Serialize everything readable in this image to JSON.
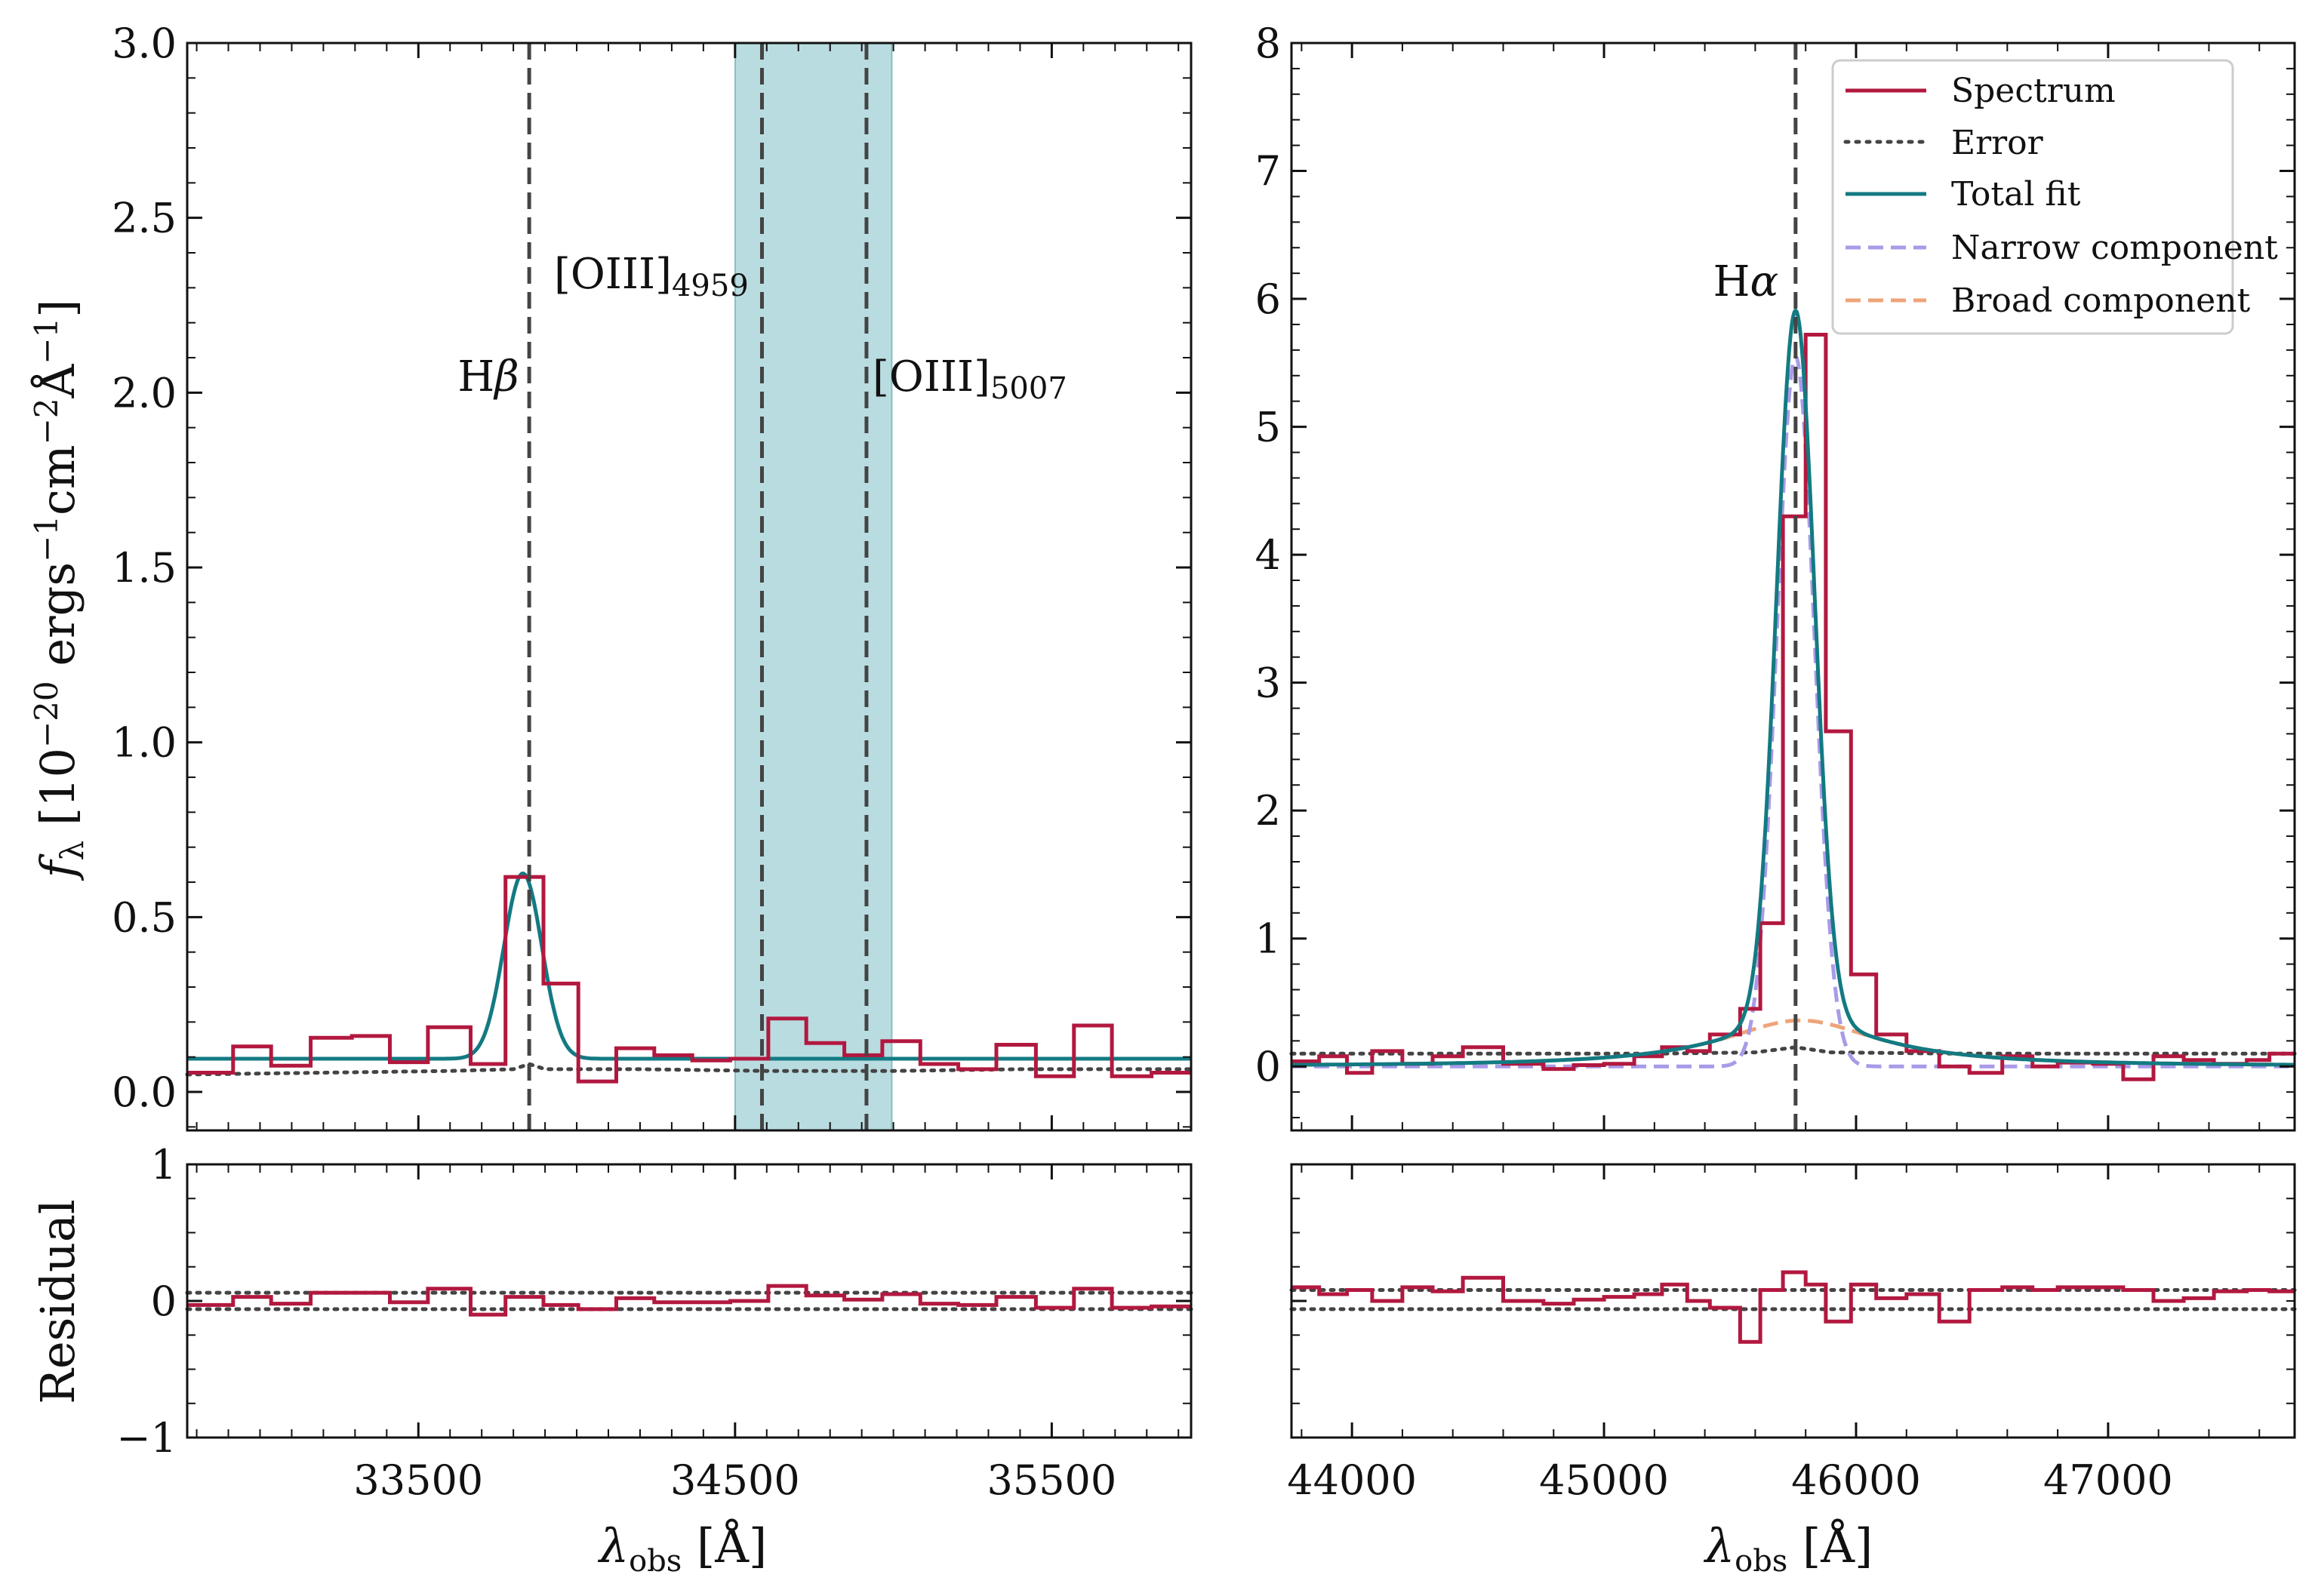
{
  "figure": {
    "colors": {
      "spectrum": "#b2183f",
      "error": "#444444",
      "total_fit": "#137a82",
      "narrow": "#a99be8",
      "broad": "#eea47a",
      "shade": "#7fbfc7",
      "vline": "#444444",
      "frame": "#111111"
    }
  },
  "chart_data": [
    {
      "id": "left-main",
      "type": "line",
      "xlim": [
        32770,
        35940
      ],
      "ylim": [
        -0.11,
        3.0
      ],
      "ylabel": "f_λ [10^−20 ergs^−1 cm^−2 Å^−1]",
      "yticks": [
        0.0,
        0.5,
        1.0,
        1.5,
        2.0,
        2.5,
        3.0
      ],
      "ytick_labels": [
        "0.0",
        "0.5",
        "1.0",
        "1.5",
        "2.0",
        "2.5",
        "3.0"
      ],
      "xticks": [
        33500,
        34500,
        35500
      ],
      "shaded_region": [
        34500,
        34995
      ],
      "lines": [
        {
          "x": 33850,
          "label": "Hβ"
        },
        {
          "x": 34585,
          "label": "[OIII]4959"
        },
        {
          "x": 34915,
          "label": "[OIII]5007"
        }
      ],
      "spectrum_steps": {
        "edges": [
          32770,
          32915,
          33035,
          33160,
          33290,
          33410,
          33530,
          33665,
          33775,
          33895,
          34005,
          34125,
          34245,
          34365,
          34485,
          34605,
          34725,
          34845,
          34965,
          35085,
          35205,
          35325,
          35450,
          35570,
          35690,
          35815,
          35940
        ],
        "values": [
          0.055,
          0.13,
          0.075,
          0.155,
          0.16,
          0.085,
          0.185,
          0.08,
          0.615,
          0.31,
          0.03,
          0.125,
          0.105,
          0.09,
          0.095,
          0.21,
          0.14,
          0.105,
          0.145,
          0.08,
          0.065,
          0.135,
          0.045,
          0.19,
          0.045,
          0.055
        ]
      },
      "total_fit": {
        "continuum": 0.095,
        "peak": 0.625,
        "center": 33830,
        "sigma": 60
      },
      "error_curve": {
        "x": [
          32770,
          33200,
          33600,
          33800,
          33850,
          33900,
          34200,
          34600,
          35000,
          35400,
          35940
        ],
        "y": [
          0.05,
          0.055,
          0.06,
          0.065,
          0.08,
          0.065,
          0.065,
          0.06,
          0.06,
          0.065,
          0.065
        ]
      }
    },
    {
      "id": "right-main",
      "type": "line",
      "xlim": [
        43760,
        47740
      ],
      "ylim": [
        -0.5,
        8.0
      ],
      "yticks": [
        0,
        1,
        2,
        3,
        4,
        5,
        6,
        7,
        8
      ],
      "ytick_labels": [
        "0",
        "1",
        "2",
        "3",
        "4",
        "5",
        "6",
        "7",
        "8"
      ],
      "xticks": [
        44000,
        45000,
        46000,
        47000
      ],
      "lines": [
        {
          "x": 45760,
          "label": "Hα"
        }
      ],
      "legend": {
        "position": "top-right",
        "entries": [
          "Spectrum",
          "Error",
          "Total fit",
          "Narrow component",
          "Broad component"
        ]
      },
      "spectrum_steps": {
        "edges": [
          43760,
          43870,
          43980,
          44080,
          44200,
          44320,
          44440,
          44600,
          44760,
          44880,
          45000,
          45120,
          45230,
          45330,
          45420,
          45540,
          45620,
          45710,
          45800,
          45880,
          45980,
          46080,
          46200,
          46330,
          46450,
          46580,
          46700,
          46800,
          46940,
          47060,
          47180,
          47300,
          47420,
          47550,
          47640,
          47740
        ],
        "values": [
          0.04,
          0.08,
          -0.05,
          0.12,
          0.02,
          0.08,
          0.15,
          0.02,
          -0.02,
          0.01,
          0.02,
          0.08,
          0.15,
          0.12,
          0.25,
          0.45,
          1.12,
          4.3,
          5.72,
          2.62,
          0.72,
          0.25,
          0.12,
          0.0,
          -0.05,
          0.08,
          0.0,
          0.03,
          0.02,
          -0.1,
          0.08,
          0.05,
          0.02,
          0.05,
          0.1
        ]
      },
      "narrow_component": {
        "amp": 5.55,
        "center": 45760,
        "sigma": 75
      },
      "broad_component": {
        "amp": 0.36,
        "center": 45780,
        "gamma": 380
      },
      "error_curve": {
        "x": [
          43760,
          44500,
          45200,
          45600,
          45760,
          45900,
          46400,
          47000,
          47740
        ],
        "y": [
          0.1,
          0.1,
          0.1,
          0.11,
          0.15,
          0.11,
          0.1,
          0.1,
          0.1
        ]
      }
    },
    {
      "id": "left-residual",
      "type": "line",
      "xlim": [
        32770,
        35940
      ],
      "ylim": [
        -1.0,
        1.0
      ],
      "ylabel": "Residual",
      "yticks": [
        -1,
        0,
        1
      ],
      "ytick_labels": [
        "−1",
        "0",
        "1"
      ],
      "xticks": [
        33500,
        34500,
        35500
      ],
      "xtick_labels": [
        "33500",
        "34500",
        "35500"
      ],
      "xlabel": "λobs [Å]",
      "error_band": [
        0.06,
        -0.06
      ],
      "residual_steps": {
        "edges": [
          32770,
          32915,
          33035,
          33160,
          33290,
          33410,
          33530,
          33665,
          33775,
          33895,
          34005,
          34125,
          34245,
          34365,
          34485,
          34605,
          34725,
          34845,
          34965,
          35085,
          35205,
          35325,
          35450,
          35570,
          35690,
          35815,
          35940
        ],
        "values": [
          -0.03,
          0.03,
          -0.02,
          0.06,
          0.06,
          -0.01,
          0.09,
          -0.1,
          0.03,
          -0.03,
          -0.06,
          0.02,
          -0.01,
          -0.01,
          0.0,
          0.11,
          0.04,
          0.01,
          0.05,
          -0.02,
          -0.03,
          0.03,
          -0.05,
          0.09,
          -0.05,
          -0.04
        ]
      }
    },
    {
      "id": "right-residual",
      "type": "line",
      "xlim": [
        43760,
        47740
      ],
      "ylim": [
        -1.0,
        1.0
      ],
      "xticks": [
        44000,
        45000,
        46000,
        47000
      ],
      "xtick_labels": [
        "44000",
        "45000",
        "46000",
        "47000"
      ],
      "xlabel": "λobs [Å]",
      "error_band": [
        0.08,
        -0.06
      ],
      "residual_steps": {
        "edges": [
          43760,
          43870,
          43980,
          44080,
          44200,
          44320,
          44440,
          44600,
          44760,
          44880,
          45000,
          45120,
          45230,
          45330,
          45420,
          45540,
          45620,
          45710,
          45800,
          45880,
          45980,
          46080,
          46200,
          46330,
          46450,
          46580,
          46700,
          46800,
          46940,
          47060,
          47180,
          47300,
          47420,
          47550,
          47640,
          47740
        ],
        "values": [
          0.1,
          0.05,
          0.08,
          0.0,
          0.1,
          0.07,
          0.17,
          0.0,
          -0.02,
          0.01,
          0.03,
          0.05,
          0.12,
          0.0,
          -0.05,
          -0.3,
          0.08,
          0.21,
          0.12,
          -0.15,
          0.12,
          0.02,
          0.05,
          -0.15,
          0.08,
          0.1,
          0.08,
          0.1,
          0.1,
          0.08,
          0.0,
          0.02,
          0.07,
          0.08,
          0.07
        ]
      }
    }
  ]
}
